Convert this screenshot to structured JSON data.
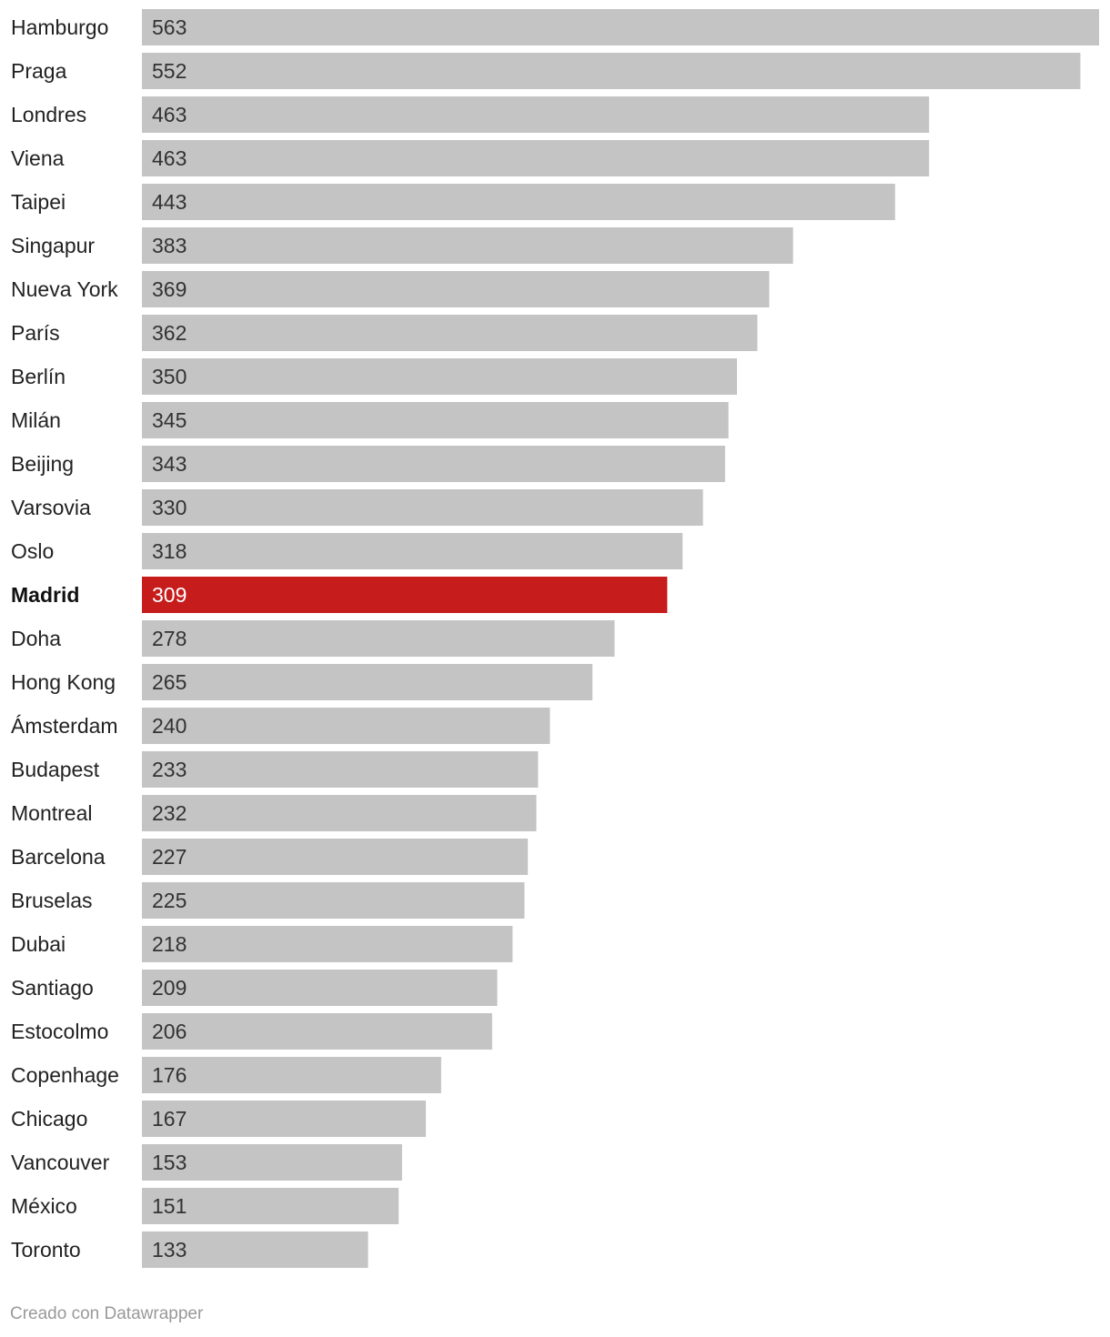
{
  "chart_data": {
    "type": "bar",
    "orientation": "horizontal",
    "categories": [
      "Hamburgo",
      "Praga",
      "Londres",
      "Viena",
      "Taipei",
      "Singapur",
      "Nueva York",
      "París",
      "Berlín",
      "Milán",
      "Beijing",
      "Varsovia",
      "Oslo",
      "Madrid",
      "Doha",
      "Hong Kong",
      "Ámsterdam",
      "Budapest",
      "Montreal",
      "Barcelona",
      "Bruselas",
      "Dubai",
      "Santiago",
      "Estocolmo",
      "Copenhage",
      "Chicago",
      "Vancouver",
      "México",
      "Toronto"
    ],
    "values": [
      563,
      552,
      463,
      463,
      443,
      383,
      369,
      362,
      350,
      345,
      343,
      330,
      318,
      309,
      278,
      265,
      240,
      233,
      232,
      227,
      225,
      218,
      209,
      206,
      176,
      167,
      153,
      151,
      133
    ],
    "highlight": "Madrid",
    "bar_color": "#c4c4c4",
    "highlight_color": "#c71c1c",
    "xlim": [
      0,
      563
    ],
    "title": "",
    "xlabel": "",
    "ylabel": ""
  },
  "footer": {
    "credit": "Creado con Datawrapper"
  }
}
